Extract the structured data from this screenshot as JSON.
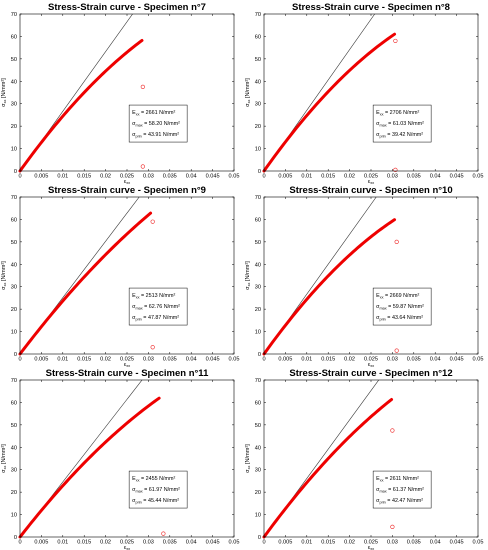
{
  "chart_data": [
    {
      "type": "line",
      "title": "Stress-Strain curve - Specimen n°7",
      "xlabel": "ε",
      "xlabel_sub": "xx",
      "ylabel": "σ",
      "ylabel_sub": "xx",
      "ylabel_unit": "[N/mm²]",
      "xlim": [
        0,
        0.05
      ],
      "ylim": [
        0,
        70
      ],
      "xticks": [
        "0",
        "0.005",
        "0.01",
        "0.015",
        "0.02",
        "0.025",
        "0.03",
        "0.035",
        "0.04",
        "0.045",
        "0.05"
      ],
      "yticks": [
        "0",
        "10",
        "20",
        "30",
        "40",
        "50",
        "60",
        "70"
      ],
      "curve_end": [
        0.0285,
        58.2
      ],
      "elastic_modulus": 2661,
      "outliers": [
        [
          0.0287,
          37.5
        ],
        [
          0.0287,
          2
        ]
      ],
      "box": [
        {
          "sym": "E",
          "sub": "xx",
          "text": " = 2661 N/mm²"
        },
        {
          "sym": "σ",
          "sub": "max",
          "text": " = 58.20 N/mm²"
        },
        {
          "sym": "σ",
          "sub": "prin",
          "text": " = 43.91 N/mm²"
        }
      ]
    },
    {
      "type": "line",
      "title": "Stress-Strain curve - Specimen n°8",
      "xlabel": "ε",
      "xlabel_sub": "xx",
      "ylabel": "σ",
      "ylabel_sub": "xx",
      "ylabel_unit": "[N/mm²]",
      "xlim": [
        0,
        0.05
      ],
      "ylim": [
        0,
        70
      ],
      "xticks": [
        "0",
        "0.005",
        "0.01",
        "0.015",
        "0.02",
        "0.025",
        "0.03",
        "0.035",
        "0.04",
        "0.045",
        "0.05"
      ],
      "yticks": [
        "0",
        "10",
        "20",
        "30",
        "40",
        "50",
        "60",
        "70"
      ],
      "curve_end": [
        0.0305,
        61.0
      ],
      "elastic_modulus": 2706,
      "outliers": [
        [
          0.0307,
          58
        ],
        [
          0.0307,
          0.5
        ]
      ],
      "box": [
        {
          "sym": "E",
          "sub": "xx",
          "text": " = 2706 N/mm²"
        },
        {
          "sym": "σ",
          "sub": "max",
          "text": " = 61.03 N/mm²"
        },
        {
          "sym": "σ",
          "sub": "prin",
          "text": " = 39.42 N/mm²"
        }
      ]
    },
    {
      "type": "line",
      "title": "Stress-Strain curve - Specimen n°9",
      "xlabel": "ε",
      "xlabel_sub": "xx",
      "ylabel": "σ",
      "ylabel_sub": "xx",
      "ylabel_unit": "[N/mm²]",
      "xlim": [
        0,
        0.05
      ],
      "ylim": [
        0,
        70
      ],
      "xticks": [
        "0",
        "0.005",
        "0.01",
        "0.015",
        "0.02",
        "0.025",
        "0.03",
        "0.035",
        "0.04",
        "0.045",
        "0.05"
      ],
      "yticks": [
        "0",
        "10",
        "20",
        "30",
        "40",
        "50",
        "60",
        "70"
      ],
      "curve_end": [
        0.0305,
        62.8
      ],
      "elastic_modulus": 2513,
      "outliers": [
        [
          0.031,
          59
        ],
        [
          0.031,
          3
        ]
      ],
      "box": [
        {
          "sym": "E",
          "sub": "xx",
          "text": " = 2513 N/mm²"
        },
        {
          "sym": "σ",
          "sub": "max",
          "text": " = 62.76 N/mm²"
        },
        {
          "sym": "σ",
          "sub": "prin",
          "text": " = 47.87 N/mm²"
        }
      ]
    },
    {
      "type": "line",
      "title": "Stress-Strain curve - Specimen n°10",
      "xlabel": "ε",
      "xlabel_sub": "xx",
      "ylabel": "σ",
      "ylabel_sub": "xx",
      "ylabel_unit": "[N/mm²]",
      "xlim": [
        0,
        0.05
      ],
      "ylim": [
        0,
        70
      ],
      "xticks": [
        "0",
        "0.005",
        "0.01",
        "0.015",
        "0.02",
        "0.025",
        "0.03",
        "0.035",
        "0.04",
        "0.045",
        "0.05"
      ],
      "yticks": [
        "0",
        "10",
        "20",
        "30",
        "40",
        "50",
        "60",
        "70"
      ],
      "curve_end": [
        0.0305,
        59.9
      ],
      "elastic_modulus": 2669,
      "outliers": [
        [
          0.031,
          50
        ],
        [
          0.031,
          1.5
        ]
      ],
      "box": [
        {
          "sym": "E",
          "sub": "xx",
          "text": " = 2669 N/mm²"
        },
        {
          "sym": "σ",
          "sub": "max",
          "text": " = 59.87 N/mm²"
        },
        {
          "sym": "σ",
          "sub": "prin",
          "text": " = 43.64 N/mm²"
        }
      ]
    },
    {
      "type": "line",
      "title": "Stress-Strain curve - Specimen n°11",
      "xlabel": "ε",
      "xlabel_sub": "xx",
      "ylabel": "σ",
      "ylabel_sub": "xx",
      "ylabel_unit": "[N/mm²]",
      "xlim": [
        0,
        0.05
      ],
      "ylim": [
        0,
        70
      ],
      "xticks": [
        "0",
        "0.005",
        "0.01",
        "0.015",
        "0.02",
        "0.025",
        "0.03",
        "0.035",
        "0.04",
        "0.045",
        "0.05"
      ],
      "yticks": [
        "0",
        "10",
        "20",
        "30",
        "40",
        "50",
        "60",
        "70"
      ],
      "curve_end": [
        0.0325,
        61.9
      ],
      "elastic_modulus": 2455,
      "outliers": [
        [
          0.0335,
          1.5
        ]
      ],
      "box": [
        {
          "sym": "E",
          "sub": "xx",
          "text": " = 2455 N/mm²"
        },
        {
          "sym": "σ",
          "sub": "max",
          "text": " = 61.97 N/mm²"
        },
        {
          "sym": "σ",
          "sub": "prin",
          "text": " = 45.44 N/mm²"
        }
      ]
    },
    {
      "type": "line",
      "title": "Stress-Strain curve - Specimen n°12",
      "xlabel": "ε",
      "xlabel_sub": "xx",
      "ylabel": "σ",
      "ylabel_sub": "xx",
      "ylabel_unit": "[N/mm²]",
      "xlim": [
        0,
        0.05
      ],
      "ylim": [
        0,
        70
      ],
      "xticks": [
        "0",
        "0.005",
        "0.01",
        "0.015",
        "0.02",
        "0.025",
        "0.03",
        "0.035",
        "0.04",
        "0.045",
        "0.05"
      ],
      "yticks": [
        "0",
        "10",
        "20",
        "30",
        "40",
        "50",
        "60",
        "70"
      ],
      "curve_end": [
        0.0298,
        61.3
      ],
      "elastic_modulus": 2611,
      "outliers": [
        [
          0.03,
          47.5
        ],
        [
          0.03,
          4.5
        ]
      ],
      "box": [
        {
          "sym": "E",
          "sub": "xx",
          "text": " = 2611 N/mm²"
        },
        {
          "sym": "σ",
          "sub": "max",
          "text": " = 61.37 N/mm²"
        },
        {
          "sym": "σ",
          "sub": "prin",
          "text": " = 42.47 N/mm²"
        }
      ]
    }
  ],
  "colors": {
    "curve": "#ee0000",
    "marker": "#ee2222",
    "elastic_line": "#333333",
    "axes": "#000000"
  }
}
